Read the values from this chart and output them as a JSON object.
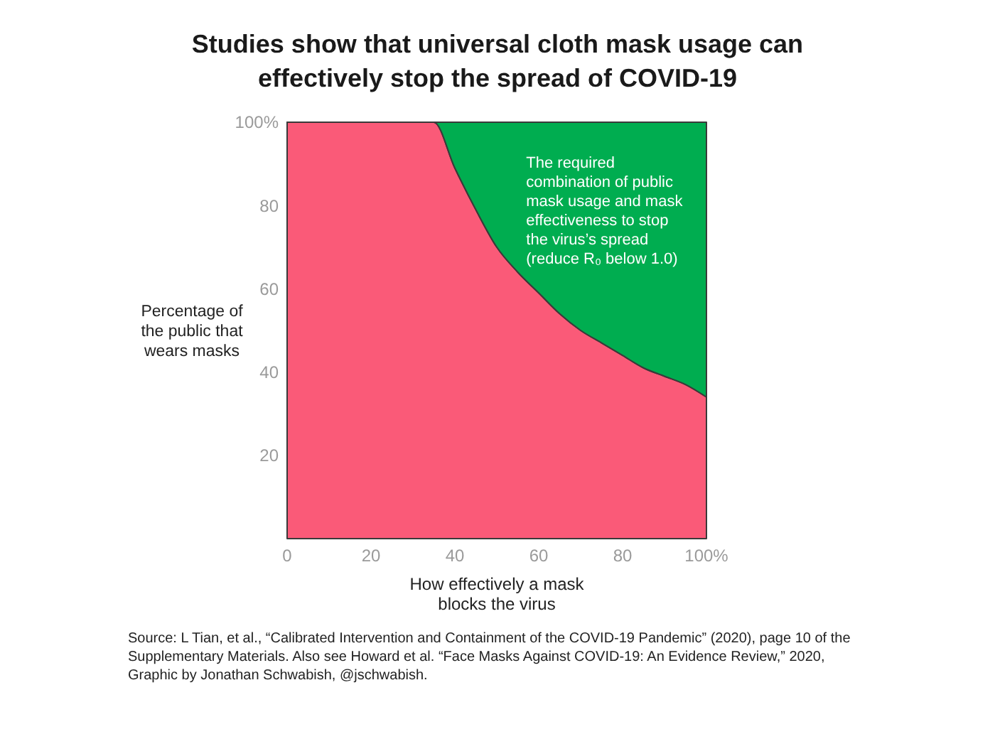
{
  "chart_data": {
    "type": "area",
    "title": "Studies show that universal cloth mask usage can effectively stop the spread of COVID-19",
    "xlabel": "How effectively a mask blocks the virus",
    "ylabel": "Percentage of the public that wears masks",
    "x": [
      0,
      35,
      40,
      45,
      50,
      55,
      60,
      65,
      70,
      75,
      80,
      85,
      90,
      95,
      100
    ],
    "series": [
      {
        "color": "#fa5a78",
        "values": [
          100,
          100,
          89,
          79,
          70,
          64,
          59,
          54,
          50,
          47,
          44,
          41,
          39,
          37,
          34
        ]
      },
      {
        "color": "#00ad50",
        "values": [
          0,
          0,
          11,
          21,
          30,
          36,
          41,
          46,
          50,
          53,
          56,
          59,
          61,
          63,
          66
        ]
      }
    ],
    "stacked": true,
    "xlim": [
      0,
      100
    ],
    "ylim": [
      0,
      100
    ],
    "xticks": [
      0,
      20,
      40,
      60,
      80,
      {
        "value": 100,
        "label": "100%"
      }
    ],
    "yticks": [
      20,
      40,
      60,
      80,
      {
        "value": 100,
        "label": "100%"
      }
    ],
    "annotations": [
      "The required combination of public mask usage and mask effectiveness to stop the virus’s spread (reduce R₀ below 1.0)",
      "Source: L Tian, et al., “Calibrated Intervention and Containment of the COVID-19 Pandemic” (2020), page 10 of the Supplementary Materials. Also see Howard et al. “Face Masks Against COVID-19: An Evidence Review,” 2020, Graphic by Jonathan Schwabish, @jschwabish."
    ]
  }
}
